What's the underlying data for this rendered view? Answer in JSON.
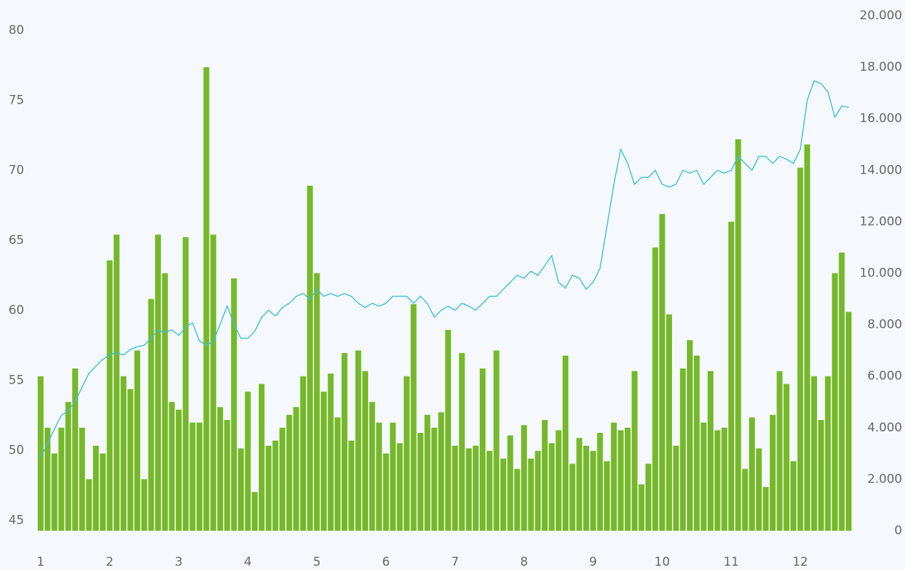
{
  "chart_data": {
    "type": "bar",
    "x": [
      0,
      1,
      2,
      3,
      4,
      5,
      6,
      7,
      8,
      9,
      10,
      11,
      12,
      13,
      14,
      15,
      16,
      17,
      18,
      19,
      20,
      21,
      22,
      23,
      24,
      25,
      26,
      27,
      28,
      29,
      30,
      31,
      32,
      33,
      34,
      35,
      36,
      37,
      38,
      39,
      40,
      41,
      42,
      43,
      44,
      45,
      46,
      47,
      48,
      49,
      50,
      51,
      52,
      53,
      54,
      55,
      56,
      57,
      58,
      59,
      60,
      61,
      62,
      63,
      64,
      65,
      66,
      67,
      68,
      69,
      70,
      71,
      72,
      73,
      74,
      75,
      76,
      77,
      78,
      79,
      80,
      81,
      82,
      83,
      84,
      85,
      86,
      87,
      88,
      89,
      90,
      91,
      92,
      93,
      94,
      95,
      96,
      97,
      98,
      99,
      100,
      101,
      102,
      103,
      104,
      105,
      106,
      107,
      108,
      109,
      110,
      111,
      112,
      113,
      114,
      115,
      116,
      117
    ],
    "xlim": [
      -0.5,
      117.5
    ],
    "xticks": [
      {
        "value": 0,
        "label": "1"
      },
      {
        "value": 10,
        "label": "2"
      },
      {
        "value": 20,
        "label": "3"
      },
      {
        "value": 30,
        "label": "4"
      },
      {
        "value": 40,
        "label": "5"
      },
      {
        "value": 50,
        "label": "6"
      },
      {
        "value": 60,
        "label": "7"
      },
      {
        "value": 70,
        "label": "8"
      },
      {
        "value": 80,
        "label": "9"
      },
      {
        "value": 90,
        "label": "10"
      },
      {
        "value": 100,
        "label": "11"
      },
      {
        "value": 110,
        "label": "12"
      }
    ],
    "ylim": [
      44.25,
      81.05
    ],
    "yticks": [
      45,
      50,
      55,
      60,
      65,
      70,
      75,
      80
    ],
    "y2lim": [
      0,
      20000
    ],
    "y2ticks": [
      0,
      {
        "value": 2000,
        "label": "2.000"
      },
      {
        "value": 4000,
        "label": "4.000"
      },
      {
        "value": 6000,
        "label": "6.000"
      },
      {
        "value": 8000,
        "label": "8.000"
      },
      {
        "value": 10000,
        "label": "10.000"
      },
      {
        "value": 12000,
        "label": "12.000"
      },
      {
        "value": 14000,
        "label": "14.000"
      },
      {
        "value": 16000,
        "label": "16.000"
      },
      {
        "value": 18000,
        "label": "18.000"
      },
      {
        "value": 20000,
        "label": "20.000"
      }
    ],
    "series": [
      {
        "type": "bar",
        "axis": "y2",
        "color": "#76b82a",
        "values": [
          6000,
          4000,
          3000,
          4000,
          5000,
          6300,
          4000,
          2000,
          3300,
          3000,
          10500,
          11500,
          6000,
          5500,
          7000,
          2000,
          9000,
          11500,
          10000,
          5000,
          4700,
          11400,
          4200,
          4200,
          18000,
          11500,
          4800,
          4300,
          9800,
          3200,
          5400,
          1500,
          5700,
          3300,
          3500,
          4000,
          4500,
          4800,
          6000,
          13400,
          10000,
          5400,
          6100,
          4400,
          6900,
          3500,
          7000,
          6200,
          5000,
          4200,
          3000,
          4200,
          3400,
          6000,
          8800,
          3800,
          4500,
          4000,
          4600,
          7800,
          3300,
          6900,
          3200,
          3300,
          6300,
          3100,
          7000,
          2800,
          3700,
          2400,
          4100,
          2800,
          3100,
          4300,
          3400,
          3900,
          6800,
          2600,
          3600,
          3300,
          3100,
          3800,
          2700,
          4200,
          3900,
          4000,
          6200,
          1800,
          2600,
          11000,
          12300,
          8400,
          3300,
          6300,
          7400,
          6800,
          4200,
          6200,
          3900,
          4000,
          12000,
          15200,
          2400,
          4400,
          3200,
          1700,
          4500,
          6200,
          5700,
          2700,
          14100,
          15000,
          6000,
          4300,
          6000,
          10000,
          10800,
          8500
        ]
      },
      {
        "type": "line",
        "color": "#3bbfd6",
        "values": [
          49.5,
          50.5,
          51.5,
          52.5,
          52.8,
          53.5,
          54.5,
          55.5,
          56,
          56.5,
          56.8,
          57,
          56.8,
          57.2,
          57.4,
          57.5,
          58,
          58.6,
          58.4,
          58.6,
          58.2,
          58.8,
          59.1,
          57.8,
          57.5,
          57.8,
          59,
          60.3,
          59,
          58,
          58,
          58.5,
          59.5,
          60,
          59.6,
          60.2,
          60.5,
          61,
          61.2,
          60.8,
          61.5,
          61,
          61.2,
          61,
          61.2,
          61,
          60.5,
          60.2,
          60.5,
          60.3,
          60.5,
          61,
          61,
          61,
          60.5,
          61,
          60.5,
          59.5,
          60,
          60.3,
          60,
          60.5,
          60.3,
          60,
          60.5,
          61,
          61,
          61.5,
          62,
          62.5,
          62.3,
          62.8,
          62.5,
          63.2,
          63.9,
          62,
          61.6,
          62.5,
          62.3,
          61.5,
          62,
          63,
          66,
          69,
          71.5,
          70.5,
          69,
          69.5,
          69.5,
          70,
          69,
          68.8,
          69,
          70,
          69.8,
          70,
          69,
          69.5,
          70,
          69.8,
          70,
          71,
          70.5,
          70,
          71,
          71,
          70.5,
          71,
          70.8,
          70.5,
          71.5,
          75,
          76.4,
          76.2,
          75.6,
          73.8,
          74.6,
          74.5
        ]
      }
    ]
  }
}
